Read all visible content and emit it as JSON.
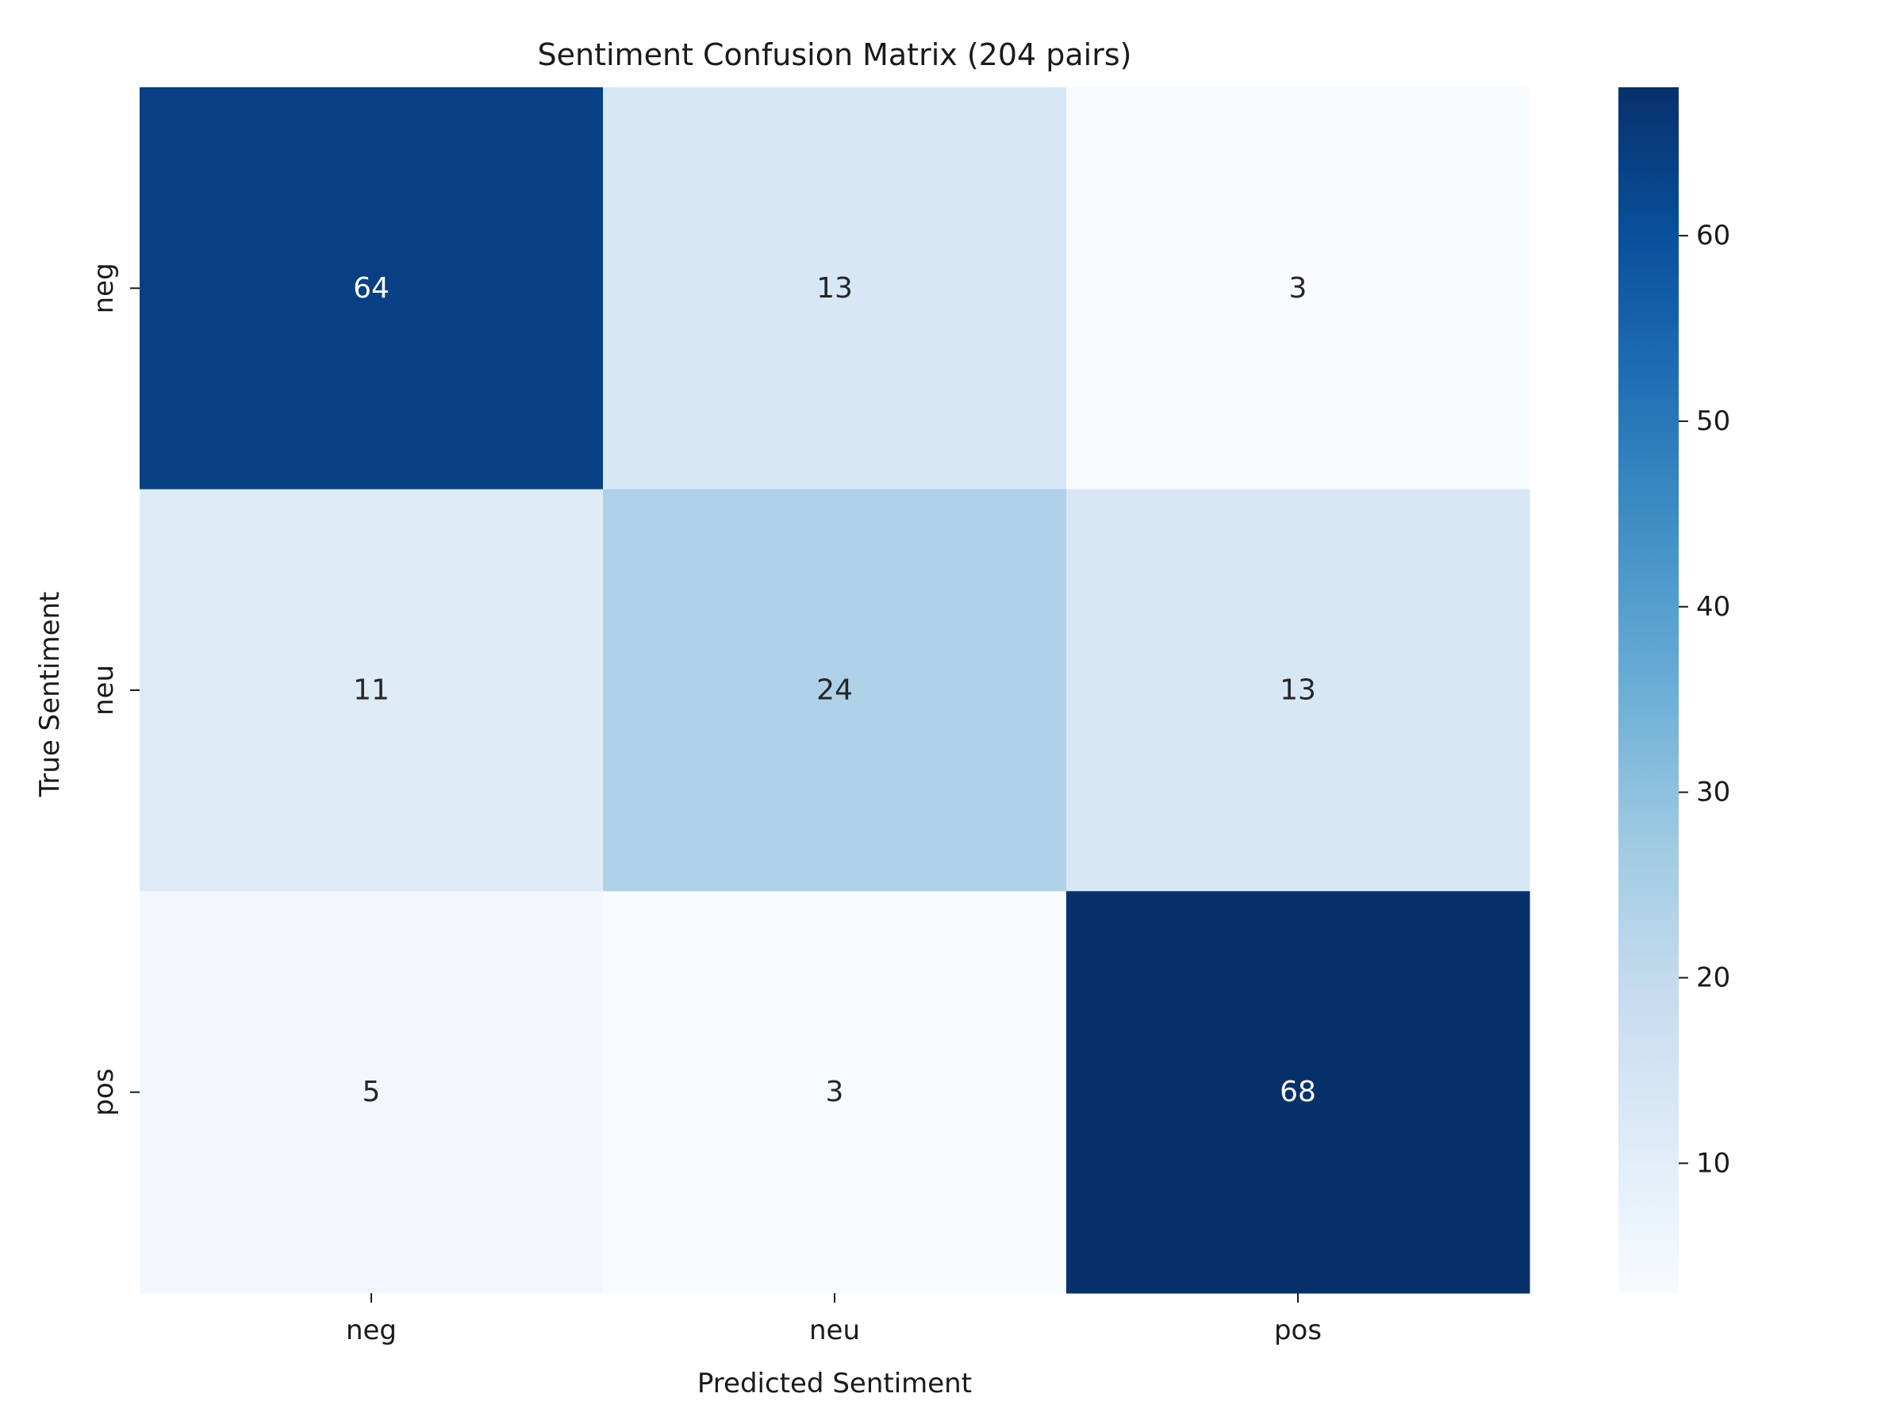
{
  "chart_data": {
    "type": "heatmap",
    "title": "Sentiment Confusion Matrix (204 pairs)",
    "xlabel": "Predicted Sentiment",
    "ylabel": "True Sentiment",
    "x_categories": [
      "neg",
      "neu",
      "pos"
    ],
    "y_categories": [
      "neg",
      "neu",
      "pos"
    ],
    "values": [
      [
        64,
        13,
        3
      ],
      [
        11,
        24,
        13
      ],
      [
        5,
        3,
        68
      ]
    ],
    "colorbar": {
      "colormap": "Blues",
      "vmin": 3,
      "vmax": 68,
      "ticks": [
        10,
        20,
        30,
        40,
        50,
        60
      ]
    }
  }
}
